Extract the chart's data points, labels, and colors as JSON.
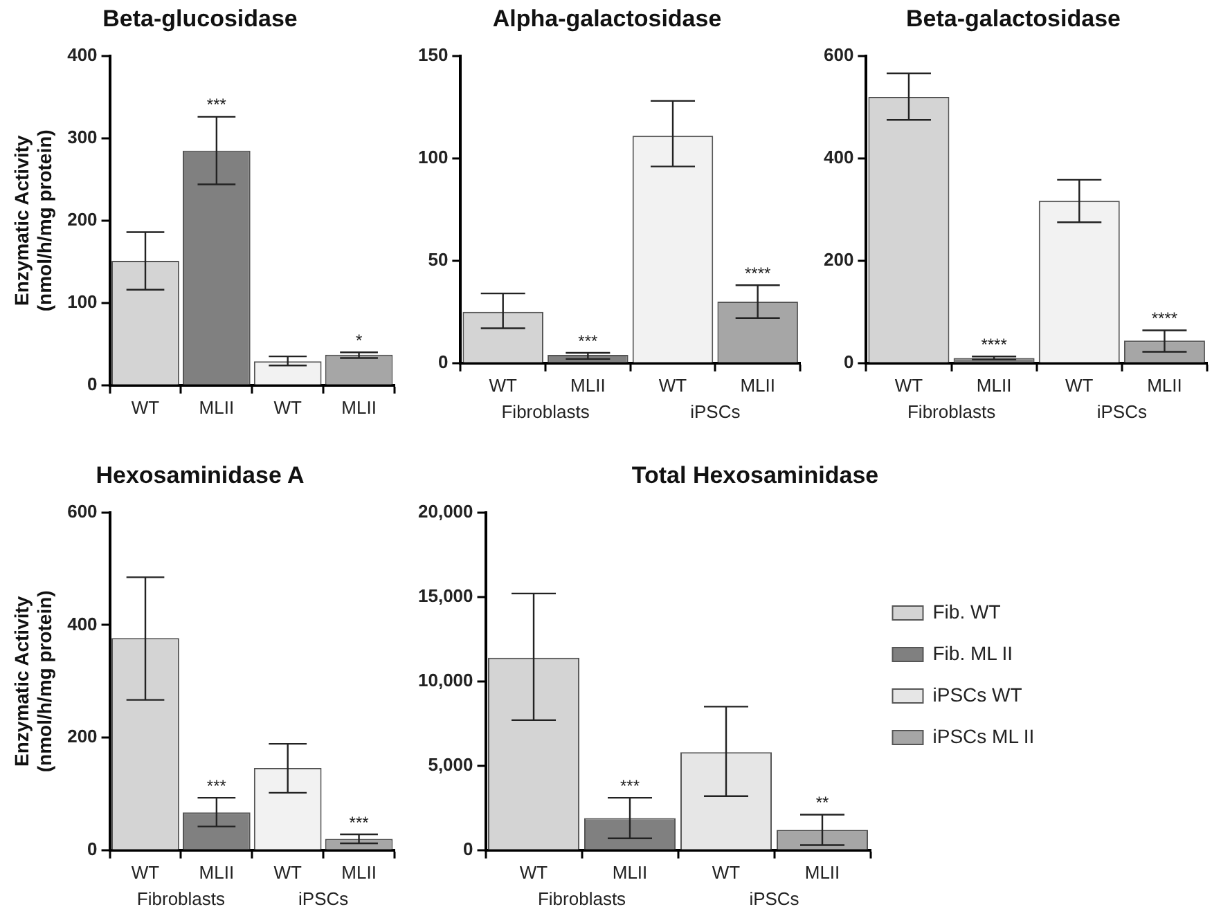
{
  "chart_data": [
    {
      "type": "bar",
      "title": "Beta-glucosidase",
      "ylabel": "Enzymatic Activity\n(nmol/h/mg protein)",
      "categories": [
        "WT",
        "MLII",
        "WT",
        "MLII"
      ],
      "ylim": [
        0,
        400
      ],
      "yticks": [
        0,
        100,
        200,
        300,
        400
      ],
      "grid": false,
      "legend": false,
      "series": [
        {
          "color": "#d4d4d4",
          "values": [
            151,
            null,
            null,
            null
          ],
          "errors": [
            [
              116,
              186
            ],
            null,
            null,
            null
          ]
        },
        {
          "color": "#808080",
          "values": [
            null,
            285,
            null,
            null
          ],
          "errors": [
            null,
            [
              244,
              326
            ],
            null,
            null
          ],
          "value_labels": [
            null,
            "***",
            null,
            null
          ]
        },
        {
          "color": "#f2f2f2",
          "values": [
            null,
            null,
            29,
            null
          ],
          "errors": [
            null,
            null,
            [
              24,
              35
            ],
            null
          ]
        },
        {
          "color": "#a6a6a6",
          "values": [
            null,
            null,
            null,
            37
          ],
          "errors": [
            null,
            null,
            null,
            [
              33,
              40
            ]
          ],
          "value_labels": [
            null,
            null,
            null,
            "*"
          ]
        }
      ]
    },
    {
      "type": "bar",
      "title": "Alpha-galactosidase",
      "categories": [
        "WT",
        "MLII",
        "WT",
        "MLII"
      ],
      "annotations": [
        "Fibroblasts",
        "iPSCs"
      ],
      "ylim": [
        0,
        150
      ],
      "yticks": [
        0,
        50,
        100,
        150
      ],
      "grid": false,
      "legend": false,
      "series": [
        {
          "color": "#d4d4d4",
          "values": [
            25,
            null,
            null,
            null
          ],
          "errors": [
            [
              17,
              34
            ],
            null,
            null,
            null
          ]
        },
        {
          "color": "#808080",
          "values": [
            null,
            4,
            null,
            null
          ],
          "errors": [
            null,
            [
              2,
              5
            ],
            null,
            null
          ],
          "value_labels": [
            null,
            "***",
            null,
            null
          ]
        },
        {
          "color": "#f2f2f2",
          "values": [
            null,
            null,
            111,
            null
          ],
          "errors": [
            null,
            null,
            [
              96,
              128
            ],
            null
          ]
        },
        {
          "color": "#a6a6a6",
          "values": [
            null,
            null,
            null,
            30
          ],
          "errors": [
            null,
            null,
            null,
            [
              22,
              38
            ]
          ],
          "value_labels": [
            null,
            null,
            null,
            "****"
          ]
        }
      ]
    },
    {
      "type": "bar",
      "title": "Beta-galactosidase",
      "categories": [
        "WT",
        "MLII",
        "WT",
        "MLII"
      ],
      "annotations": [
        "Fibroblasts",
        "iPSCs"
      ],
      "ylim": [
        0,
        600
      ],
      "yticks": [
        0,
        200,
        400,
        600
      ],
      "grid": false,
      "legend": false,
      "series": [
        {
          "color": "#d4d4d4",
          "values": [
            520,
            null,
            null,
            null
          ],
          "errors": [
            [
              475,
              566
            ],
            null,
            null,
            null
          ]
        },
        {
          "color": "#808080",
          "values": [
            null,
            10,
            null,
            null
          ],
          "errors": [
            null,
            [
              7,
              13
            ],
            null,
            null
          ],
          "value_labels": [
            null,
            "****",
            null,
            null
          ]
        },
        {
          "color": "#f2f2f2",
          "values": [
            null,
            null,
            317,
            null
          ],
          "errors": [
            null,
            null,
            [
              275,
              358
            ],
            null
          ]
        },
        {
          "color": "#a6a6a6",
          "values": [
            null,
            null,
            null,
            44
          ],
          "errors": [
            null,
            null,
            null,
            [
              22,
              64
            ]
          ],
          "value_labels": [
            null,
            null,
            null,
            "****"
          ]
        }
      ]
    },
    {
      "type": "bar",
      "title": "Hexosaminidase A",
      "ylabel": "Enzymatic Activity\n(nmol/h/mg protein)",
      "categories": [
        "WT",
        "MLII",
        "WT",
        "MLII"
      ],
      "annotations": [
        "Fibroblasts",
        "iPSCs"
      ],
      "ylim": [
        0,
        600
      ],
      "yticks": [
        0,
        200,
        400,
        600
      ],
      "grid": false,
      "legend": false,
      "series": [
        {
          "color": "#d4d4d4",
          "values": [
            377,
            null,
            null,
            null
          ],
          "errors": [
            [
              267,
              485
            ],
            null,
            null,
            null
          ]
        },
        {
          "color": "#808080",
          "values": [
            null,
            67,
            null,
            null
          ],
          "errors": [
            null,
            [
              42,
              93
            ],
            null,
            null
          ],
          "value_labels": [
            null,
            "***",
            null,
            null
          ]
        },
        {
          "color": "#f2f2f2",
          "values": [
            null,
            null,
            146,
            null
          ],
          "errors": [
            null,
            null,
            [
              102,
              189
            ],
            null
          ]
        },
        {
          "color": "#a6a6a6",
          "values": [
            null,
            null,
            null,
            20
          ],
          "errors": [
            null,
            null,
            null,
            [
              12,
              28
            ]
          ],
          "value_labels": [
            null,
            null,
            null,
            "***"
          ]
        }
      ]
    },
    {
      "type": "bar",
      "title": "Total Hexosaminidase",
      "categories": [
        "WT",
        "MLII",
        "WT",
        "MLII"
      ],
      "annotations": [
        "Fibroblasts",
        "iPSCs"
      ],
      "ylim": [
        0,
        20000
      ],
      "yticks": [
        0,
        {
          "value": 5000,
          "label": "5,000"
        },
        {
          "value": 10000,
          "label": "10,000"
        },
        {
          "value": 15000,
          "label": "15,000"
        },
        {
          "value": 20000,
          "label": "20,000"
        }
      ],
      "grid": false,
      "legend": "right",
      "series": [
        {
          "name": "Fib. WT",
          "color": "#d4d4d4",
          "values": [
            11400,
            null,
            null,
            null
          ],
          "errors": [
            [
              7700,
              15200
            ],
            null,
            null,
            null
          ]
        },
        {
          "name": "Fib. ML II",
          "color": "#808080",
          "values": [
            null,
            1900,
            null,
            null
          ],
          "errors": [
            null,
            [
              700,
              3100
            ],
            null,
            null
          ],
          "value_labels": [
            null,
            "***",
            null,
            null
          ]
        },
        {
          "name": "iPSCs WT",
          "color": "#e6e6e6",
          "values": [
            null,
            null,
            5800,
            null
          ],
          "errors": [
            null,
            null,
            [
              3200,
              8500
            ],
            null
          ]
        },
        {
          "name": "iPSCs ML II",
          "color": "#a6a6a6",
          "values": [
            null,
            null,
            null,
            1200
          ],
          "errors": [
            null,
            null,
            null,
            [
              300,
              2100
            ]
          ],
          "value_labels": [
            null,
            null,
            null,
            "**"
          ]
        }
      ]
    }
  ]
}
